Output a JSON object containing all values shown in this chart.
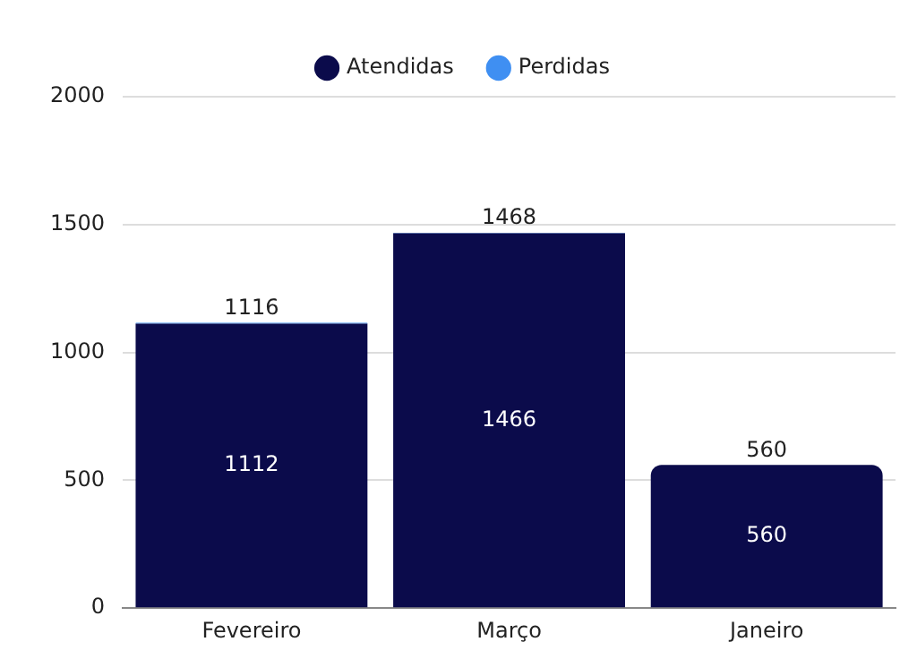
{
  "chart_data": {
    "type": "bar",
    "stacked": true,
    "categories": [
      "Fevereiro",
      "Março",
      "Janeiro"
    ],
    "series": [
      {
        "name": "Atendidas",
        "color": "#0b0b4b",
        "values": [
          1112,
          1466,
          560
        ],
        "value_labels": [
          "1112",
          "1466",
          "560"
        ]
      },
      {
        "name": "Perdidas",
        "color": "#3f8ff2",
        "values": [
          4,
          2,
          0
        ]
      }
    ],
    "totals": [
      "1116",
      "1468",
      "560"
    ],
    "ylim": [
      0,
      2000
    ],
    "yticks": [
      0,
      500,
      1000,
      1500,
      2000
    ],
    "grid": "y",
    "legend": "top"
  }
}
